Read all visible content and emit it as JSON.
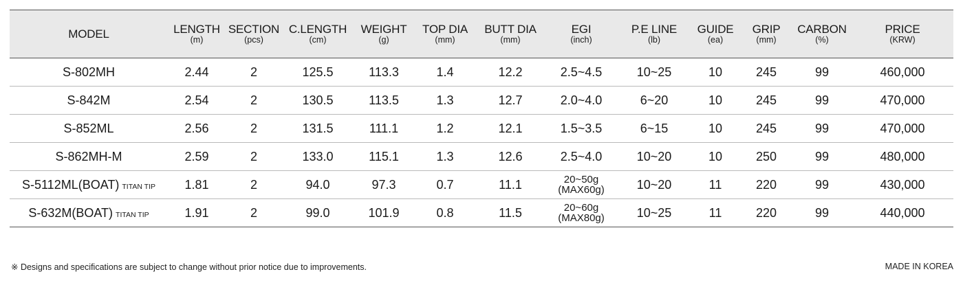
{
  "columns": [
    {
      "key": "model",
      "label": "MODEL",
      "unit": ""
    },
    {
      "key": "length",
      "label": "LENGTH",
      "unit": "(m)"
    },
    {
      "key": "section",
      "label": "SECTION",
      "unit": "(pcs)"
    },
    {
      "key": "clength",
      "label": "C.LENGTH",
      "unit": "(cm)"
    },
    {
      "key": "weight",
      "label": "WEIGHT",
      "unit": "(g)"
    },
    {
      "key": "topdia",
      "label": "TOP DIA",
      "unit": "(mm)"
    },
    {
      "key": "buttdia",
      "label": "BUTT DIA",
      "unit": "(mm)"
    },
    {
      "key": "egi",
      "label": "EGI",
      "unit": "(inch)"
    },
    {
      "key": "peline",
      "label": "P.E LINE",
      "unit": "(lb)"
    },
    {
      "key": "guide",
      "label": "GUIDE",
      "unit": "(ea)"
    },
    {
      "key": "grip",
      "label": "GRIP",
      "unit": "(mm)"
    },
    {
      "key": "carbon",
      "label": "CARBON",
      "unit": "(%)"
    },
    {
      "key": "price",
      "label": "PRICE",
      "unit": "(KRW)"
    }
  ],
  "rows": [
    {
      "model": "S-802MH",
      "model_tag": "",
      "length": "2.44",
      "section": "2",
      "clength": "125.5",
      "weight": "113.3",
      "topdia": "1.4",
      "buttdia": "12.2",
      "egi": "2.5~4.5",
      "egi_sub": "",
      "peline": "10~25",
      "guide": "10",
      "grip": "245",
      "carbon": "99",
      "price": "460,000"
    },
    {
      "model": "S-842M",
      "model_tag": "",
      "length": "2.54",
      "section": "2",
      "clength": "130.5",
      "weight": "113.5",
      "topdia": "1.3",
      "buttdia": "12.7",
      "egi": "2.0~4.0",
      "egi_sub": "",
      "peline": "6~20",
      "guide": "10",
      "grip": "245",
      "carbon": "99",
      "price": "470,000"
    },
    {
      "model": "S-852ML",
      "model_tag": "",
      "length": "2.56",
      "section": "2",
      "clength": "131.5",
      "weight": "111.1",
      "topdia": "1.2",
      "buttdia": "12.1",
      "egi": "1.5~3.5",
      "egi_sub": "",
      "peline": "6~15",
      "guide": "10",
      "grip": "245",
      "carbon": "99",
      "price": "470,000"
    },
    {
      "model": "S-862MH-M",
      "model_tag": "",
      "length": "2.59",
      "section": "2",
      "clength": "133.0",
      "weight": "115.1",
      "topdia": "1.3",
      "buttdia": "12.6",
      "egi": "2.5~4.0",
      "egi_sub": "",
      "peline": "10~20",
      "guide": "10",
      "grip": "250",
      "carbon": "99",
      "price": "480,000"
    },
    {
      "model": "S-5112ML(BOAT)",
      "model_tag": "TITAN TIP",
      "length": "1.81",
      "section": "2",
      "clength": "94.0",
      "weight": "97.3",
      "topdia": "0.7",
      "buttdia": "11.1",
      "egi": "20~50g",
      "egi_sub": "(MAX60g)",
      "peline": "10~20",
      "guide": "11",
      "grip": "220",
      "carbon": "99",
      "price": "430,000"
    },
    {
      "model": "S-632M(BOAT)",
      "model_tag": "TITAN TIP",
      "length": "1.91",
      "section": "2",
      "clength": "99.0",
      "weight": "101.9",
      "topdia": "0.8",
      "buttdia": "11.5",
      "egi": "20~60g",
      "egi_sub": "(MAX80g)",
      "peline": "10~25",
      "guide": "11",
      "grip": "220",
      "carbon": "99",
      "price": "440,000"
    }
  ],
  "footer": {
    "note": "※ Designs and specifications are subject to change without prior notice due to improvements.",
    "origin": "MADE IN KOREA"
  }
}
